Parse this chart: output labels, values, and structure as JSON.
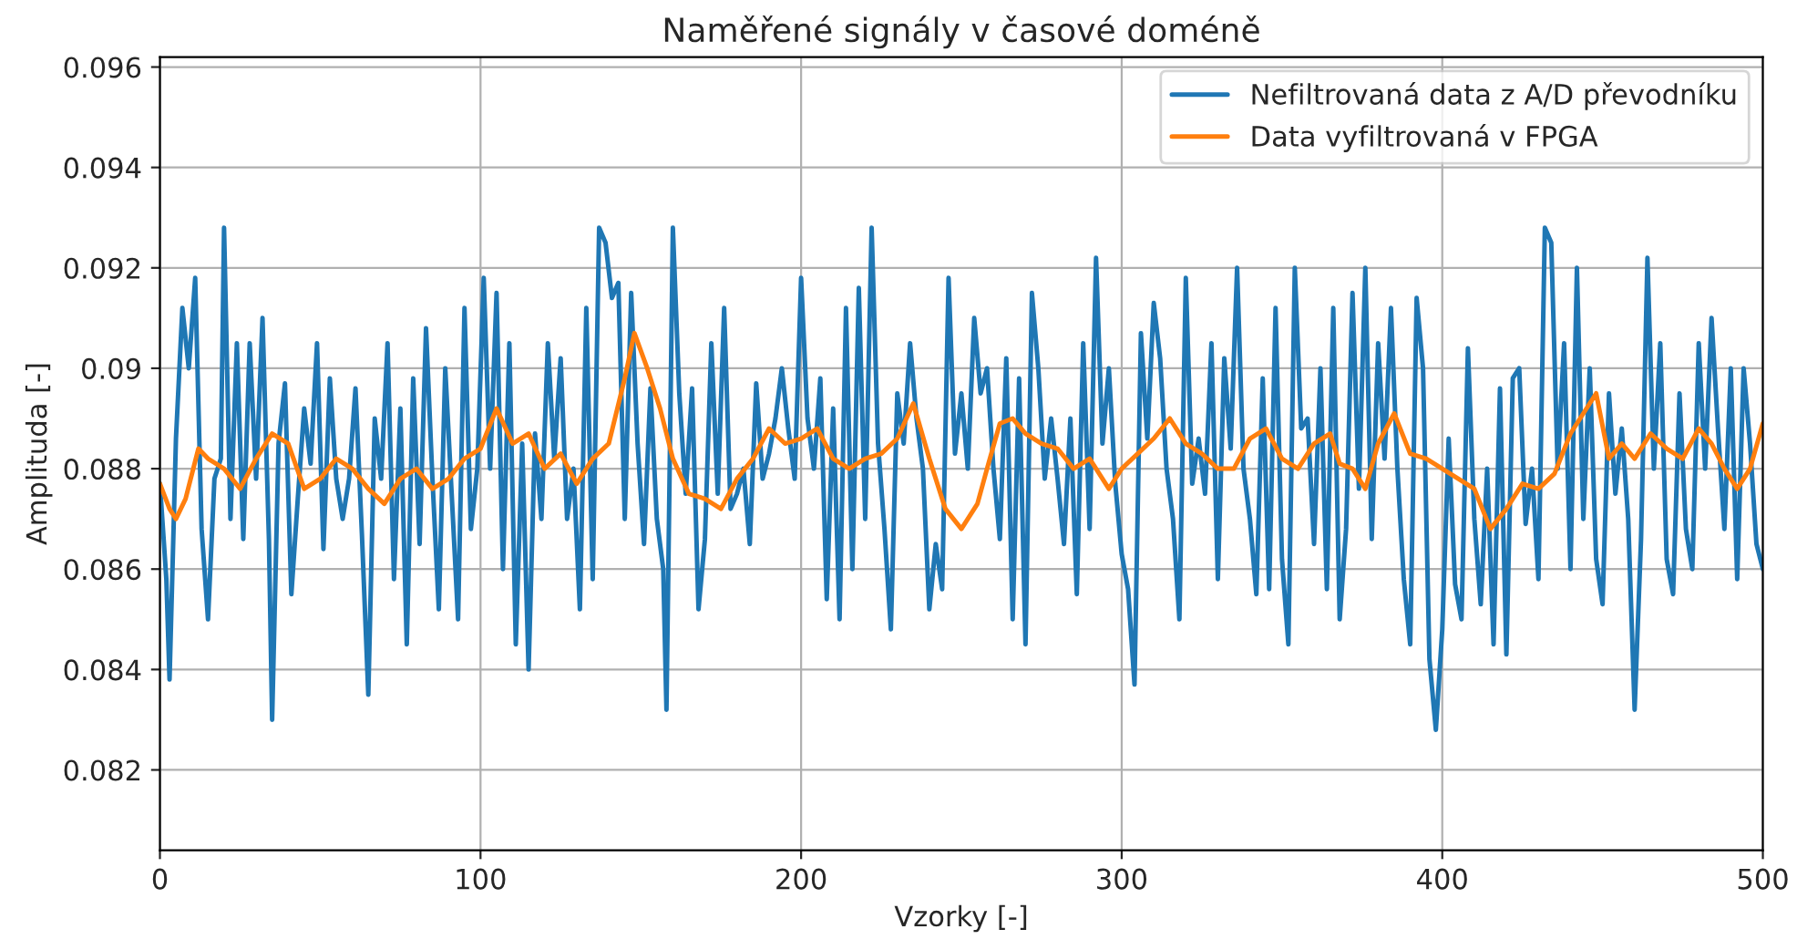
{
  "chart_data": {
    "type": "line",
    "title": "Naměřené signály v časové doméně",
    "xlabel": "Vzorky [-]",
    "ylabel": "Amplituda [-]",
    "xlim": [
      0,
      500
    ],
    "xticks": [
      0,
      100,
      200,
      300,
      400,
      500
    ],
    "ylim": [
      0.0804,
      0.0962
    ],
    "yticks": [
      0.082,
      0.084,
      0.086,
      0.088,
      0.09,
      0.092,
      0.094,
      0.096
    ],
    "grid": true,
    "legend": "top right",
    "series": [
      {
        "name": "Nefiltrovaná data z A/D převodníku",
        "color": "#1f77b4",
        "x": [
          0,
          2,
          3,
          5,
          7,
          9,
          11,
          13,
          15,
          17,
          19,
          20,
          22,
          24,
          26,
          28,
          30,
          32,
          34,
          35,
          37,
          39,
          41,
          43,
          45,
          47,
          49,
          51,
          53,
          55,
          57,
          59,
          61,
          63,
          65,
          67,
          69,
          71,
          73,
          75,
          77,
          79,
          81,
          83,
          85,
          87,
          89,
          91,
          93,
          95,
          97,
          99,
          101,
          103,
          105,
          107,
          109,
          111,
          113,
          115,
          117,
          119,
          121,
          123,
          125,
          127,
          129,
          131,
          133,
          135,
          137,
          139,
          141,
          143,
          145,
          147,
          149,
          151,
          153,
          155,
          157,
          158,
          160,
          162,
          164,
          166,
          168,
          170,
          172,
          174,
          176,
          178,
          180,
          182,
          184,
          186,
          188,
          190,
          192,
          194,
          196,
          198,
          200,
          202,
          204,
          206,
          208,
          210,
          212,
          214,
          216,
          218,
          220,
          222,
          224,
          226,
          228,
          230,
          232,
          234,
          236,
          238,
          240,
          242,
          244,
          246,
          248,
          250,
          252,
          254,
          256,
          258,
          260,
          262,
          264,
          266,
          268,
          270,
          272,
          274,
          276,
          278,
          280,
          282,
          284,
          286,
          288,
          290,
          292,
          294,
          296,
          298,
          300,
          302,
          304,
          306,
          308,
          310,
          312,
          314,
          316,
          318,
          320,
          322,
          324,
          326,
          328,
          330,
          332,
          334,
          336,
          338,
          340,
          342,
          344,
          346,
          348,
          350,
          352,
          354,
          356,
          358,
          360,
          362,
          364,
          366,
          368,
          370,
          372,
          374,
          376,
          378,
          380,
          382,
          384,
          386,
          388,
          390,
          392,
          394,
          396,
          398,
          400,
          402,
          404,
          406,
          408,
          410,
          412,
          414,
          416,
          418,
          420,
          422,
          424,
          426,
          428,
          430,
          432,
          434,
          436,
          438,
          440,
          442,
          444,
          446,
          448,
          450,
          452,
          454,
          456,
          458,
          460,
          462,
          464,
          466,
          468,
          470,
          472,
          474,
          476,
          478,
          480,
          482,
          484,
          486,
          488,
          490,
          492,
          494,
          496,
          498,
          500
        ],
        "values": [
          0.0877,
          0.0858,
          0.0838,
          0.0886,
          0.0912,
          0.09,
          0.0918,
          0.0868,
          0.085,
          0.0878,
          0.0882,
          0.0928,
          0.087,
          0.0905,
          0.0866,
          0.0905,
          0.0878,
          0.091,
          0.0866,
          0.083,
          0.0885,
          0.0897,
          0.0855,
          0.0874,
          0.0892,
          0.0881,
          0.0905,
          0.0864,
          0.0898,
          0.0878,
          0.087,
          0.0878,
          0.0896,
          0.0867,
          0.0835,
          0.089,
          0.0878,
          0.0905,
          0.0858,
          0.0892,
          0.0845,
          0.0898,
          0.0865,
          0.0908,
          0.0878,
          0.0852,
          0.09,
          0.0875,
          0.085,
          0.0912,
          0.0868,
          0.088,
          0.0918,
          0.088,
          0.0915,
          0.086,
          0.0905,
          0.0845,
          0.0885,
          0.084,
          0.0887,
          0.087,
          0.0905,
          0.0882,
          0.0902,
          0.087,
          0.088,
          0.0852,
          0.0912,
          0.0858,
          0.0928,
          0.0925,
          0.0914,
          0.0917,
          0.087,
          0.0915,
          0.0885,
          0.0865,
          0.0896,
          0.087,
          0.086,
          0.0832,
          0.0928,
          0.0895,
          0.0875,
          0.0896,
          0.0852,
          0.0866,
          0.0905,
          0.0875,
          0.0912,
          0.0872,
          0.0875,
          0.088,
          0.0865,
          0.0897,
          0.0878,
          0.0883,
          0.089,
          0.09,
          0.0888,
          0.0878,
          0.0918,
          0.089,
          0.088,
          0.0898,
          0.0854,
          0.0892,
          0.085,
          0.0912,
          0.086,
          0.0916,
          0.087,
          0.0928,
          0.0885,
          0.0868,
          0.0848,
          0.0895,
          0.0885,
          0.0905,
          0.089,
          0.088,
          0.0852,
          0.0865,
          0.0856,
          0.0918,
          0.0883,
          0.0895,
          0.088,
          0.091,
          0.0895,
          0.09,
          0.088,
          0.0866,
          0.0902,
          0.085,
          0.0898,
          0.0845,
          0.0915,
          0.09,
          0.0878,
          0.089,
          0.0878,
          0.0865,
          0.089,
          0.0855,
          0.0905,
          0.0868,
          0.0922,
          0.0885,
          0.09,
          0.0877,
          0.0863,
          0.0856,
          0.0837,
          0.0907,
          0.0886,
          0.0913,
          0.0902,
          0.088,
          0.087,
          0.085,
          0.0918,
          0.0877,
          0.0886,
          0.0875,
          0.0905,
          0.0858,
          0.0902,
          0.0884,
          0.092,
          0.088,
          0.087,
          0.0855,
          0.0898,
          0.0856,
          0.0912,
          0.0862,
          0.0845,
          0.092,
          0.0888,
          0.089,
          0.0865,
          0.09,
          0.0856,
          0.0912,
          0.085,
          0.0868,
          0.0915,
          0.0876,
          0.092,
          0.0866,
          0.0905,
          0.0882,
          0.0912,
          0.088,
          0.0858,
          0.0845,
          0.0914,
          0.09,
          0.0842,
          0.0828,
          0.0848,
          0.0886,
          0.0857,
          0.085,
          0.0904,
          0.087,
          0.0853,
          0.088,
          0.0845,
          0.0896,
          0.0843,
          0.0898,
          0.09,
          0.0869,
          0.088,
          0.0858,
          0.0928,
          0.0925,
          0.088,
          0.0905,
          0.086,
          0.092,
          0.087,
          0.09,
          0.0862,
          0.0853,
          0.0895,
          0.0875,
          0.0888,
          0.087,
          0.0832,
          0.0866,
          0.0922,
          0.088,
          0.0905,
          0.0862,
          0.0855,
          0.0895,
          0.0868,
          0.086,
          0.0905,
          0.088,
          0.091,
          0.0888,
          0.0868,
          0.09,
          0.0858,
          0.09,
          0.0885,
          0.0865,
          0.086
        ]
      },
      {
        "name": "Data vyfiltrovaná v FPGA",
        "color": "#ff7f0e",
        "x": [
          0,
          3,
          5,
          8,
          12,
          15,
          20,
          25,
          30,
          35,
          40,
          45,
          50,
          55,
          60,
          65,
          70,
          75,
          80,
          85,
          90,
          95,
          100,
          105,
          110,
          115,
          120,
          125,
          130,
          135,
          140,
          145,
          148,
          152,
          156,
          160,
          165,
          170,
          175,
          180,
          185,
          190,
          195,
          200,
          205,
          210,
          215,
          220,
          225,
          230,
          235,
          240,
          245,
          250,
          255,
          258,
          262,
          266,
          270,
          275,
          280,
          285,
          290,
          296,
          300,
          305,
          310,
          315,
          320,
          325,
          330,
          335,
          340,
          345,
          350,
          355,
          360,
          365,
          368,
          372,
          376,
          380,
          385,
          390,
          395,
          400,
          405,
          410,
          415,
          420,
          425,
          430,
          435,
          440,
          445,
          448,
          452,
          456,
          460,
          465,
          470,
          475,
          480,
          484,
          488,
          492,
          496,
          500
        ],
        "values": [
          0.0877,
          0.0872,
          0.087,
          0.0874,
          0.0884,
          0.0882,
          0.088,
          0.0876,
          0.0882,
          0.0887,
          0.0885,
          0.0876,
          0.0878,
          0.0882,
          0.088,
          0.0876,
          0.0873,
          0.0878,
          0.088,
          0.0876,
          0.0878,
          0.0882,
          0.0884,
          0.0892,
          0.0885,
          0.0887,
          0.088,
          0.0883,
          0.0877,
          0.0882,
          0.0885,
          0.0898,
          0.0907,
          0.09,
          0.0892,
          0.0882,
          0.0875,
          0.0874,
          0.0872,
          0.0878,
          0.0882,
          0.0888,
          0.0885,
          0.0886,
          0.0888,
          0.0882,
          0.088,
          0.0882,
          0.0883,
          0.0886,
          0.0893,
          0.0882,
          0.0872,
          0.0868,
          0.0873,
          0.088,
          0.0889,
          0.089,
          0.0887,
          0.0885,
          0.0884,
          0.088,
          0.0882,
          0.0876,
          0.088,
          0.0883,
          0.0886,
          0.089,
          0.0885,
          0.0883,
          0.088,
          0.088,
          0.0886,
          0.0888,
          0.0882,
          0.088,
          0.0885,
          0.0887,
          0.0881,
          0.088,
          0.0876,
          0.0885,
          0.0891,
          0.0883,
          0.0882,
          0.088,
          0.0878,
          0.0876,
          0.0868,
          0.0872,
          0.0877,
          0.0876,
          0.0879,
          0.0887,
          0.0892,
          0.0895,
          0.0882,
          0.0885,
          0.0882,
          0.0887,
          0.0884,
          0.0882,
          0.0888,
          0.0885,
          0.088,
          0.0876,
          0.088,
          0.0889
        ]
      }
    ]
  }
}
